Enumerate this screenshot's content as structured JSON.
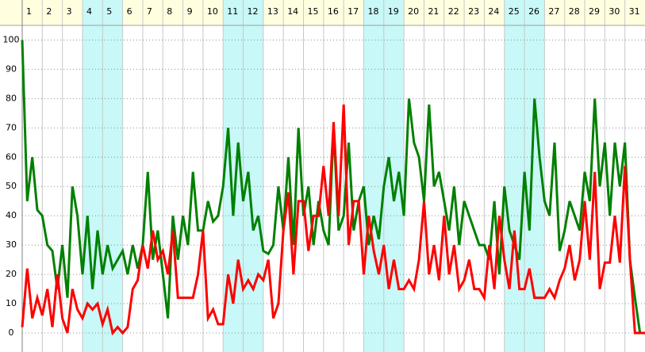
{
  "chart_data": {
    "type": "line",
    "categories": [
      "1",
      "2",
      "3",
      "4",
      "5",
      "6",
      "7",
      "8",
      "9",
      "10",
      "11",
      "12",
      "13",
      "14",
      "15",
      "16",
      "17",
      "18",
      "19",
      "20",
      "21",
      "22",
      "23",
      "24",
      "25",
      "26",
      "27",
      "28",
      "29",
      "30",
      "31"
    ],
    "shaded_days": [
      4,
      5,
      11,
      12,
      18,
      19,
      25,
      26
    ],
    "shade_color": "#c8f8f8",
    "header_color": "#ffffe0",
    "xlim": [
      1,
      32
    ],
    "ylim": [
      -6.5,
      105
    ],
    "yticks": [
      0,
      10,
      20,
      30,
      40,
      50,
      60,
      70,
      80,
      90,
      100
    ],
    "grid": true,
    "x": [
      1,
      1.25,
      1.5,
      1.75,
      2,
      2.25,
      2.5,
      2.75,
      3,
      3.25,
      3.5,
      3.75,
      4,
      4.25,
      4.5,
      4.75,
      5,
      5.25,
      5.5,
      5.75,
      6,
      6.25,
      6.5,
      6.75,
      7,
      7.25,
      7.5,
      7.75,
      8,
      8.25,
      8.5,
      8.75,
      9,
      9.25,
      9.5,
      9.75,
      10,
      10.25,
      10.5,
      10.75,
      11,
      11.25,
      11.5,
      11.75,
      12,
      12.25,
      12.5,
      12.75,
      13,
      13.25,
      13.5,
      13.75,
      14,
      14.25,
      14.5,
      14.75,
      15,
      15.25,
      15.5,
      15.75,
      16,
      16.25,
      16.5,
      16.75,
      17,
      17.25,
      17.5,
      17.75,
      18,
      18.25,
      18.5,
      18.75,
      19,
      19.25,
      19.5,
      19.75,
      20,
      20.25,
      20.5,
      20.75,
      21,
      21.25,
      21.5,
      21.75,
      22,
      22.25,
      22.5,
      22.75,
      23,
      23.25,
      23.5,
      23.75,
      24,
      24.25,
      24.5,
      24.75,
      25,
      25.25,
      25.5,
      25.75,
      26,
      26.25,
      26.5,
      26.75,
      27,
      27.25,
      27.5,
      27.75,
      28,
      28.25,
      28.5,
      28.75,
      29,
      29.25,
      29.5,
      29.75,
      30,
      30.25,
      30.5,
      30.75,
      31,
      31.25,
      31.5,
      31.75,
      32
    ],
    "series": [
      {
        "color": "#008000",
        "values": [
          100,
          45,
          60,
          42,
          40,
          30,
          28,
          15,
          30,
          12,
          50,
          40,
          20,
          40,
          15,
          35,
          20,
          30,
          22,
          25,
          28,
          20,
          30,
          22,
          30,
          55,
          25,
          35,
          20,
          5,
          40,
          25,
          40,
          30,
          55,
          35,
          35,
          45,
          38,
          40,
          50,
          70,
          40,
          65,
          45,
          55,
          35,
          40,
          28,
          27,
          30,
          50,
          35,
          60,
          30,
          70,
          40,
          50,
          30,
          45,
          35,
          30,
          70,
          35,
          40,
          65,
          35,
          45,
          50,
          30,
          40,
          32,
          50,
          60,
          45,
          55,
          40,
          80,
          65,
          60,
          45,
          78,
          50,
          55,
          45,
          35,
          50,
          30,
          45,
          40,
          35,
          30,
          30,
          25,
          45,
          20,
          50,
          35,
          30,
          25,
          55,
          35,
          80,
          60,
          45,
          40,
          65,
          28,
          35,
          45,
          40,
          35,
          55,
          45,
          80,
          50,
          65,
          40,
          65,
          50,
          65,
          25,
          12,
          0,
          0
        ]
      },
      {
        "color": "#ff0000",
        "values": [
          2,
          22,
          5,
          12,
          6,
          15,
          2,
          20,
          5,
          0,
          15,
          8,
          5,
          10,
          8,
          10,
          3,
          8,
          0,
          2,
          0,
          2,
          15,
          18,
          30,
          22,
          35,
          25,
          28,
          20,
          35,
          12,
          12,
          12,
          12,
          20,
          35,
          5,
          8,
          3,
          3,
          20,
          10,
          25,
          15,
          18,
          15,
          20,
          18,
          25,
          5,
          10,
          35,
          48,
          20,
          45,
          45,
          28,
          40,
          40,
          57,
          40,
          72,
          40,
          78,
          30,
          45,
          45,
          20,
          40,
          28,
          20,
          30,
          15,
          25,
          15,
          15,
          18,
          15,
          25,
          45,
          20,
          30,
          18,
          40,
          20,
          30,
          15,
          18,
          25,
          15,
          15,
          12,
          30,
          15,
          40,
          25,
          15,
          35,
          15,
          15,
          22,
          12,
          12,
          12,
          15,
          12,
          18,
          22,
          30,
          18,
          25,
          45,
          25,
          55,
          15,
          24,
          24,
          40,
          24,
          57,
          25,
          0,
          0,
          0
        ]
      }
    ]
  }
}
